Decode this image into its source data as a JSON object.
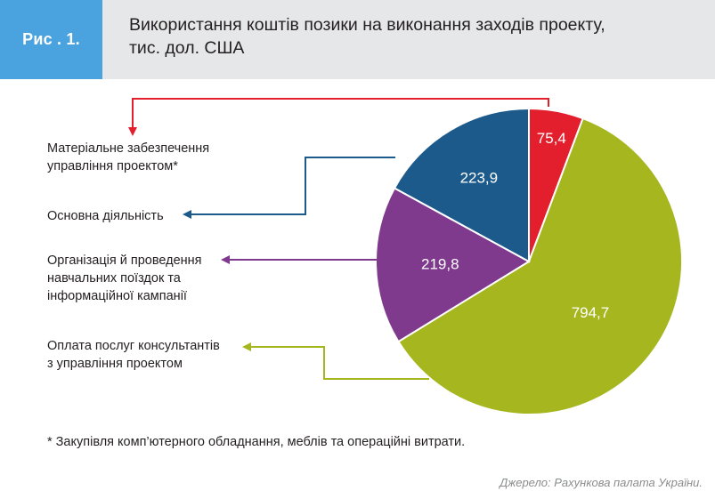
{
  "figure": {
    "badge": "Рис . 1.",
    "title_lines": [
      "Використання коштів позики на виконання заходів проекту,",
      "тис. дол. США"
    ],
    "footnote": "* Закупівля комп’ютерного обладнання, меблів та операційні витрати.",
    "source": "Джерело: Рахункова палата України."
  },
  "colors": {
    "badge": "#4aa3df",
    "header_bg": "#e6e7e8",
    "red": "#e31e2d",
    "olive": "#a5b61e",
    "purple": "#7f3a8e",
    "blue": "#1b5a8a"
  },
  "chart_data": {
    "type": "pie",
    "start_angle_deg": 0,
    "direction": "clockwise",
    "slices": [
      {
        "name_lines": [
          "Матеріальне забезпечення",
          "управління проектом*"
        ],
        "value": 75.4,
        "label": "75,4",
        "color": "#e31e2d"
      },
      {
        "name_lines": [
          "Оплата послуг консультантів",
          "з управління проектом"
        ],
        "value": 794.7,
        "label": "794,7",
        "color": "#a5b61e"
      },
      {
        "name_lines": [
          "Організація й проведення",
          "навчальних поїздок та",
          "інформаційної кампанії"
        ],
        "value": 219.8,
        "label": "219,8",
        "color": "#7f3a8e"
      },
      {
        "name_lines": [
          "Основна діяльність"
        ],
        "value": 223.9,
        "label": "223,9",
        "color": "#1b5a8a"
      }
    ]
  }
}
